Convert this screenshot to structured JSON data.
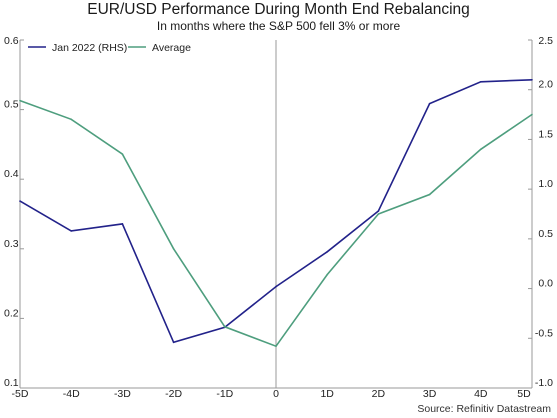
{
  "chart_data": {
    "type": "line",
    "title": "EUR/USD Performance During Month End Rebalancing",
    "subtitle": "In months where the S&P 500 fell 3% or more",
    "source": "Source: Refinitiv Datastream",
    "x": [
      "-5D",
      "-4D",
      "-3D",
      "-2D",
      "-1D",
      "0",
      "1D",
      "2D",
      "3D",
      "4D",
      "5D"
    ],
    "y_left": {
      "ticks": [
        "0.6",
        "0.5",
        "0.4",
        "0.3",
        "0.2",
        "0.1"
      ],
      "range": [
        0.1,
        0.6
      ]
    },
    "y_right": {
      "ticks": [
        "2.5",
        "2.0",
        "1.5",
        "1.0",
        "0.5",
        "0.0",
        "-0.5",
        "-1.0"
      ],
      "range": [
        -1.0,
        2.5
      ]
    },
    "series": [
      {
        "name": "Jan 2022 (RHS)",
        "axis": "right",
        "color": "#22228a",
        "values": [
          0.88,
          0.58,
          0.65,
          -0.54,
          -0.39,
          0.02,
          0.37,
          0.78,
          1.86,
          2.08,
          2.1
        ]
      },
      {
        "name": "Average",
        "axis": "left",
        "color": "#4e9e7e",
        "values": [
          0.513,
          0.486,
          0.436,
          0.3,
          0.188,
          0.16,
          0.263,
          0.35,
          0.378,
          0.443,
          0.493
        ]
      }
    ],
    "vline_at": "0",
    "legend_position": "top-left",
    "grid": false
  }
}
